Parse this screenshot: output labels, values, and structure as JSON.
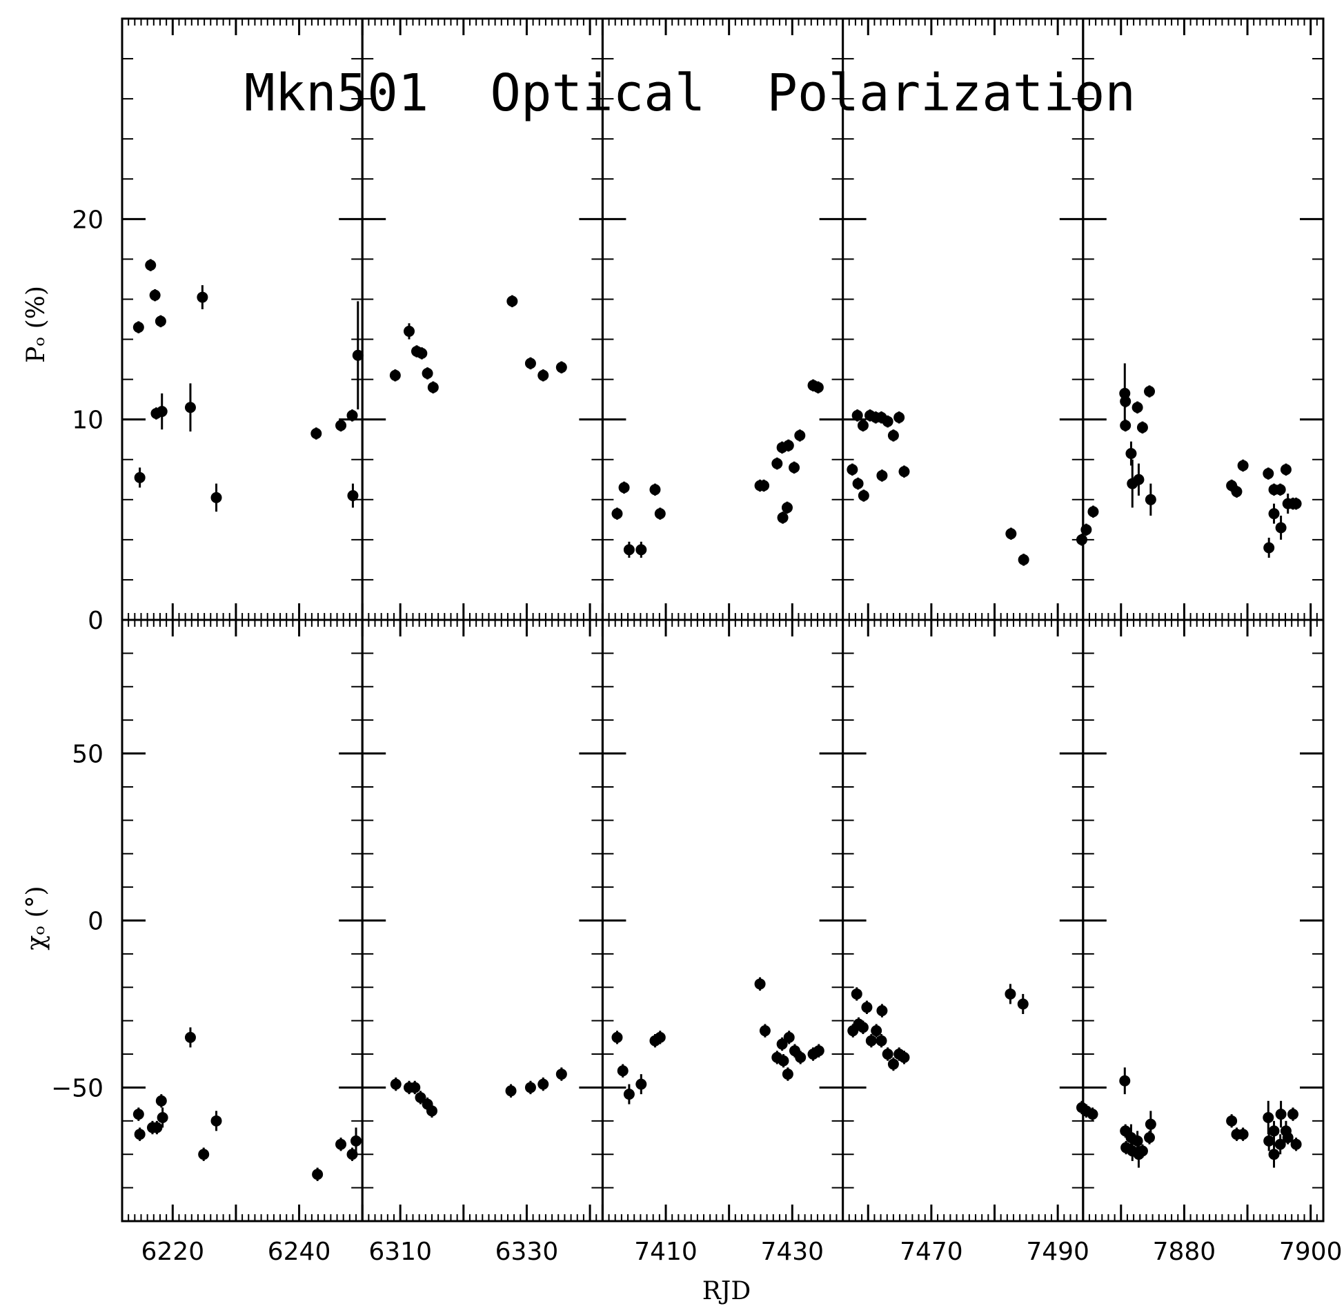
{
  "chart_data": {
    "type": "scatter",
    "title": "Mkn501  Optical  Polarization",
    "xlabel": "RJD",
    "panels_top": {
      "ylabel": "Pₒ (%)",
      "ylim": [
        0,
        30
      ],
      "yticks_labeled": [
        0,
        10,
        20
      ]
    },
    "panels_bottom": {
      "ylabel": "χₒ (°)",
      "ylim": [
        -90,
        90
      ],
      "yticks_labeled": [
        -50,
        0,
        50
      ]
    },
    "panels": [
      {
        "xlim": [
          6212,
          6250
        ],
        "xticks_labeled": [
          6220,
          6240
        ],
        "xtick_labels": [
          "6220",
          "6240"
        ],
        "P": [
          {
            "x": 6214.6,
            "y": 14.6,
            "e": 0.3
          },
          {
            "x": 6214.8,
            "y": 7.1,
            "e": 0.5
          },
          {
            "x": 6216.5,
            "y": 17.7,
            "e": 0.3
          },
          {
            "x": 6217.2,
            "y": 16.2,
            "e": 0.3
          },
          {
            "x": 6217.4,
            "y": 10.3,
            "e": 0.3
          },
          {
            "x": 6218.1,
            "y": 14.9,
            "e": 0.3
          },
          {
            "x": 6218.3,
            "y": 10.4,
            "e": 0.9
          },
          {
            "x": 6222.8,
            "y": 10.6,
            "e": 1.2
          },
          {
            "x": 6224.7,
            "y": 16.1,
            "e": 0.6
          },
          {
            "x": 6226.9,
            "y": 6.1,
            "e": 0.7
          },
          {
            "x": 6242.7,
            "y": 9.3,
            "e": 0.3
          },
          {
            "x": 6246.6,
            "y": 9.7,
            "e": 0.3
          },
          {
            "x": 6248.4,
            "y": 10.2,
            "e": 0.3
          },
          {
            "x": 6248.5,
            "y": 6.2,
            "e": 0.6
          },
          {
            "x": 6249.3,
            "y": 13.2,
            "e": 2.7
          }
        ],
        "chi": [
          {
            "x": 6214.6,
            "y": -58,
            "e": 2
          },
          {
            "x": 6214.8,
            "y": -64,
            "e": 2
          },
          {
            "x": 6216.8,
            "y": -62,
            "e": 2
          },
          {
            "x": 6217.5,
            "y": -62,
            "e": 2
          },
          {
            "x": 6218.2,
            "y": -54,
            "e": 2
          },
          {
            "x": 6218.4,
            "y": -59,
            "e": 3
          },
          {
            "x": 6222.8,
            "y": -35,
            "e": 3
          },
          {
            "x": 6224.9,
            "y": -70,
            "e": 2
          },
          {
            "x": 6226.9,
            "y": -60,
            "e": 3
          },
          {
            "x": 6242.9,
            "y": -76,
            "e": 2
          },
          {
            "x": 6246.6,
            "y": -67,
            "e": 2
          },
          {
            "x": 6248.4,
            "y": -70,
            "e": 2
          },
          {
            "x": 6249.0,
            "y": -66,
            "e": 4
          }
        ]
      },
      {
        "xlim": [
          6304,
          6342
        ],
        "xticks_labeled": [
          6310,
          6330
        ],
        "xtick_labels": [
          "6310",
          "6330"
        ],
        "P": [
          {
            "x": 6309.2,
            "y": 12.2,
            "e": 0.3
          },
          {
            "x": 6311.4,
            "y": 14.4,
            "e": 0.4
          },
          {
            "x": 6312.6,
            "y": 13.4,
            "e": 0.3
          },
          {
            "x": 6313.4,
            "y": 13.3,
            "e": 0.3
          },
          {
            "x": 6314.3,
            "y": 12.3,
            "e": 0.3
          },
          {
            "x": 6315.2,
            "y": 11.6,
            "e": 0.3
          },
          {
            "x": 6327.7,
            "y": 15.9,
            "e": 0.3
          },
          {
            "x": 6330.6,
            "y": 12.8,
            "e": 0.3
          },
          {
            "x": 6332.6,
            "y": 12.2,
            "e": 0.3
          },
          {
            "x": 6335.5,
            "y": 12.6,
            "e": 0.3
          }
        ],
        "chi": [
          {
            "x": 6309.3,
            "y": -49,
            "e": 2
          },
          {
            "x": 6311.4,
            "y": -50,
            "e": 2
          },
          {
            "x": 6312.3,
            "y": -50,
            "e": 2
          },
          {
            "x": 6313.2,
            "y": -53,
            "e": 2
          },
          {
            "x": 6314.3,
            "y": -55,
            "e": 2
          },
          {
            "x": 6315.0,
            "y": -57,
            "e": 2
          },
          {
            "x": 6327.5,
            "y": -51,
            "e": 2
          },
          {
            "x": 6330.6,
            "y": -50,
            "e": 2
          },
          {
            "x": 6332.6,
            "y": -49,
            "e": 2
          },
          {
            "x": 6335.5,
            "y": -46,
            "e": 2
          }
        ]
      },
      {
        "xlim": [
          7400,
          7438
        ],
        "xticks_labeled": [
          7410,
          7430
        ],
        "xtick_labels": [
          "7410",
          "7430"
        ],
        "P": [
          {
            "x": 7402.3,
            "y": 5.3,
            "e": 0.3
          },
          {
            "x": 7403.4,
            "y": 6.6,
            "e": 0.3
          },
          {
            "x": 7404.2,
            "y": 3.5,
            "e": 0.4
          },
          {
            "x": 7406.1,
            "y": 3.5,
            "e": 0.4
          },
          {
            "x": 7408.3,
            "y": 6.5,
            "e": 0.3
          },
          {
            "x": 7409.1,
            "y": 5.3,
            "e": 0.3
          },
          {
            "x": 7424.9,
            "y": 6.7,
            "e": 0.3
          },
          {
            "x": 7425.5,
            "y": 6.7,
            "e": 0.3
          },
          {
            "x": 7427.6,
            "y": 7.8,
            "e": 0.3
          },
          {
            "x": 7428.4,
            "y": 8.6,
            "e": 0.3
          },
          {
            "x": 7428.5,
            "y": 5.1,
            "e": 0.3
          },
          {
            "x": 7429.2,
            "y": 5.6,
            "e": 0.3
          },
          {
            "x": 7429.4,
            "y": 8.7,
            "e": 0.3
          },
          {
            "x": 7430.3,
            "y": 7.6,
            "e": 0.3
          },
          {
            "x": 7431.2,
            "y": 9.2,
            "e": 0.3
          },
          {
            "x": 7433.3,
            "y": 11.7,
            "e": 0.3
          },
          {
            "x": 7434.1,
            "y": 11.6,
            "e": 0.3
          }
        ],
        "chi": [
          {
            "x": 7402.3,
            "y": -35,
            "e": 2
          },
          {
            "x": 7403.2,
            "y": -45,
            "e": 2
          },
          {
            "x": 7404.2,
            "y": -52,
            "e": 3
          },
          {
            "x": 7406.1,
            "y": -49,
            "e": 3
          },
          {
            "x": 7408.3,
            "y": -36,
            "e": 2
          },
          {
            "x": 7409.1,
            "y": -35,
            "e": 2
          },
          {
            "x": 7424.9,
            "y": -19,
            "e": 2
          },
          {
            "x": 7425.7,
            "y": -33,
            "e": 2
          },
          {
            "x": 7427.6,
            "y": -41,
            "e": 2
          },
          {
            "x": 7428.4,
            "y": -37,
            "e": 2
          },
          {
            "x": 7428.6,
            "y": -42,
            "e": 2
          },
          {
            "x": 7429.3,
            "y": -46,
            "e": 2
          },
          {
            "x": 7429.5,
            "y": -35,
            "e": 2
          },
          {
            "x": 7430.4,
            "y": -39,
            "e": 2
          },
          {
            "x": 7431.3,
            "y": -41,
            "e": 2
          },
          {
            "x": 7433.3,
            "y": -40,
            "e": 2
          },
          {
            "x": 7434.2,
            "y": -39,
            "e": 2
          }
        ]
      },
      {
        "xlim": [
          7456,
          7494
        ],
        "xticks_labeled": [
          7470,
          7490
        ],
        "xtick_labels": [
          "7470",
          "7490"
        ],
        "P": [
          {
            "x": 7457.5,
            "y": 7.5,
            "e": 0.3
          },
          {
            "x": 7458.3,
            "y": 10.2,
            "e": 0.3
          },
          {
            "x": 7458.4,
            "y": 6.8,
            "e": 0.3
          },
          {
            "x": 7459.2,
            "y": 9.7,
            "e": 0.3
          },
          {
            "x": 7459.3,
            "y": 6.2,
            "e": 0.3
          },
          {
            "x": 7460.3,
            "y": 10.2,
            "e": 0.3
          },
          {
            "x": 7461.2,
            "y": 10.1,
            "e": 0.3
          },
          {
            "x": 7462.1,
            "y": 10.1,
            "e": 0.3
          },
          {
            "x": 7462.2,
            "y": 7.2,
            "e": 0.3
          },
          {
            "x": 7463.1,
            "y": 9.9,
            "e": 0.3
          },
          {
            "x": 7464.0,
            "y": 9.2,
            "e": 0.3
          },
          {
            "x": 7464.9,
            "y": 10.1,
            "e": 0.3
          },
          {
            "x": 7465.7,
            "y": 7.4,
            "e": 0.3
          },
          {
            "x": 7482.6,
            "y": 4.3,
            "e": 0.3
          },
          {
            "x": 7484.6,
            "y": 3.0,
            "e": 0.3
          },
          {
            "x": 7493.8,
            "y": 4.0,
            "e": 0.3
          },
          {
            "x": 7494.5,
            "y": 4.5,
            "e": 0.3
          },
          {
            "x": 7495.6,
            "y": 5.4,
            "e": 0.3
          }
        ],
        "chi": [
          {
            "x": 7457.6,
            "y": -33,
            "e": 2
          },
          {
            "x": 7458.2,
            "y": -22,
            "e": 2
          },
          {
            "x": 7458.5,
            "y": -31,
            "e": 2
          },
          {
            "x": 7459.2,
            "y": -32,
            "e": 2
          },
          {
            "x": 7459.8,
            "y": -26,
            "e": 2
          },
          {
            "x": 7460.5,
            "y": -36,
            "e": 2
          },
          {
            "x": 7461.3,
            "y": -33,
            "e": 2
          },
          {
            "x": 7462.1,
            "y": -36,
            "e": 2
          },
          {
            "x": 7462.2,
            "y": -27,
            "e": 2
          },
          {
            "x": 7463.1,
            "y": -40,
            "e": 2
          },
          {
            "x": 7464.0,
            "y": -43,
            "e": 2
          },
          {
            "x": 7464.9,
            "y": -40,
            "e": 2
          },
          {
            "x": 7465.7,
            "y": -41,
            "e": 2
          },
          {
            "x": 7482.5,
            "y": -22,
            "e": 3
          },
          {
            "x": 7484.5,
            "y": -25,
            "e": 3
          },
          {
            "x": 7493.8,
            "y": -56,
            "e": 2
          },
          {
            "x": 7494.5,
            "y": -57,
            "e": 2
          },
          {
            "x": 7495.5,
            "y": -58,
            "e": 2
          }
        ]
      },
      {
        "xlim": [
          7864,
          7902
        ],
        "xticks_labeled": [
          7880,
          7900
        ],
        "xtick_labels": [
          "7880",
          "7900"
        ],
        "P": [
          {
            "x": 7870.6,
            "y": 11.3,
            "e": 1.5
          },
          {
            "x": 7870.7,
            "y": 10.9,
            "e": 0.3
          },
          {
            "x": 7870.7,
            "y": 9.7,
            "e": 0.3
          },
          {
            "x": 7871.6,
            "y": 8.3,
            "e": 0.6
          },
          {
            "x": 7871.8,
            "y": 6.8,
            "e": 1.2
          },
          {
            "x": 7872.6,
            "y": 10.6,
            "e": 0.3
          },
          {
            "x": 7872.8,
            "y": 7.0,
            "e": 0.8
          },
          {
            "x": 7873.4,
            "y": 9.6,
            "e": 0.3
          },
          {
            "x": 7874.5,
            "y": 11.4,
            "e": 0.3
          },
          {
            "x": 7874.7,
            "y": 6.0,
            "e": 0.8
          },
          {
            "x": 7887.5,
            "y": 6.7,
            "e": 0.3
          },
          {
            "x": 7888.3,
            "y": 6.4,
            "e": 0.3
          },
          {
            "x": 7889.3,
            "y": 7.7,
            "e": 0.3
          },
          {
            "x": 7893.3,
            "y": 7.3,
            "e": 0.3
          },
          {
            "x": 7893.4,
            "y": 3.6,
            "e": 0.5
          },
          {
            "x": 7894.2,
            "y": 6.5,
            "e": 0.3
          },
          {
            "x": 7894.2,
            "y": 5.3,
            "e": 0.5
          },
          {
            "x": 7895.2,
            "y": 6.5,
            "e": 0.3
          },
          {
            "x": 7895.3,
            "y": 4.6,
            "e": 0.6
          },
          {
            "x": 7896.1,
            "y": 7.5,
            "e": 0.3
          },
          {
            "x": 7896.4,
            "y": 5.8,
            "e": 0.5
          },
          {
            "x": 7897.2,
            "y": 5.8,
            "e": 0.3
          },
          {
            "x": 7897.7,
            "y": 5.8,
            "e": 0.3
          }
        ],
        "chi": [
          {
            "x": 7870.6,
            "y": -48,
            "e": 4
          },
          {
            "x": 7870.7,
            "y": -63,
            "e": 2
          },
          {
            "x": 7870.8,
            "y": -68,
            "e": 2
          },
          {
            "x": 7871.6,
            "y": -65,
            "e": 4
          },
          {
            "x": 7871.8,
            "y": -69,
            "e": 3
          },
          {
            "x": 7872.6,
            "y": -66,
            "e": 3
          },
          {
            "x": 7872.8,
            "y": -70,
            "e": 4
          },
          {
            "x": 7873.4,
            "y": -69,
            "e": 2
          },
          {
            "x": 7874.5,
            "y": -65,
            "e": 2
          },
          {
            "x": 7874.7,
            "y": -61,
            "e": 4
          },
          {
            "x": 7887.5,
            "y": -60,
            "e": 2
          },
          {
            "x": 7888.3,
            "y": -64,
            "e": 2
          },
          {
            "x": 7889.3,
            "y": -64,
            "e": 2
          },
          {
            "x": 7893.3,
            "y": -59,
            "e": 5
          },
          {
            "x": 7893.4,
            "y": -66,
            "e": 3
          },
          {
            "x": 7894.2,
            "y": -70,
            "e": 4
          },
          {
            "x": 7894.2,
            "y": -63,
            "e": 3
          },
          {
            "x": 7895.2,
            "y": -67,
            "e": 3
          },
          {
            "x": 7895.3,
            "y": -58,
            "e": 4
          },
          {
            "x": 7896.1,
            "y": -63,
            "e": 3
          },
          {
            "x": 7896.4,
            "y": -65,
            "e": 2
          },
          {
            "x": 7897.2,
            "y": -58,
            "e": 2
          },
          {
            "x": 7897.7,
            "y": -67,
            "e": 2
          }
        ]
      }
    ]
  }
}
